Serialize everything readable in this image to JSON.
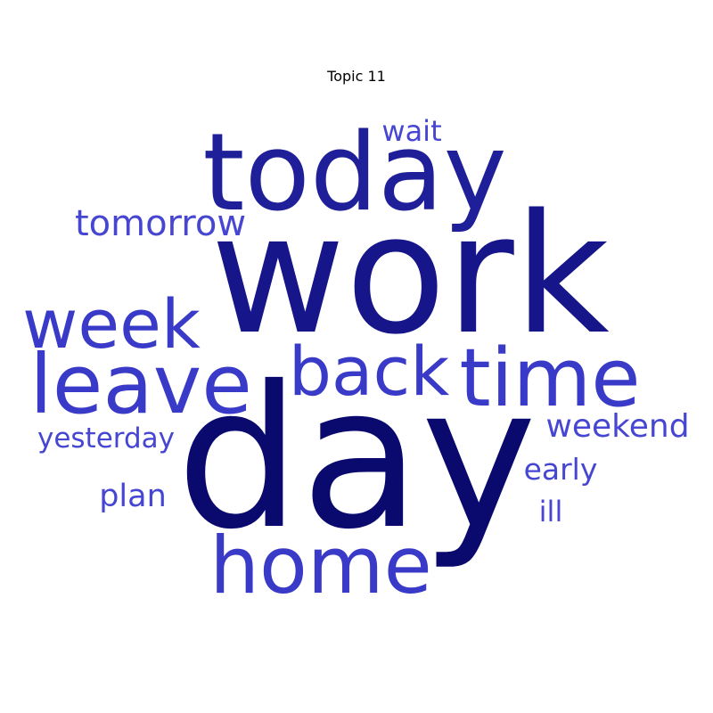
{
  "title": "Topic 11",
  "colors": {
    "background": "#ffffff",
    "darkest": "#0a0a6e",
    "dark": "#16168a",
    "medium": "#1f1f9a",
    "light": "#3a3ac8",
    "lighter": "#4646d2"
  },
  "words": [
    {
      "text": "work",
      "tone": "dark"
    },
    {
      "text": "day",
      "tone": "darkest"
    },
    {
      "text": "today",
      "tone": "medium"
    },
    {
      "text": "week",
      "tone": "light"
    },
    {
      "text": "leave",
      "tone": "light"
    },
    {
      "text": "back",
      "tone": "light"
    },
    {
      "text": "time",
      "tone": "light"
    },
    {
      "text": "home",
      "tone": "light"
    },
    {
      "text": "tomorrow",
      "tone": "lighter"
    },
    {
      "text": "wait",
      "tone": "lighter"
    },
    {
      "text": "weekend",
      "tone": "lighter"
    },
    {
      "text": "yesterday",
      "tone": "lighter"
    },
    {
      "text": "early",
      "tone": "lighter"
    },
    {
      "text": "plan",
      "tone": "lighter"
    },
    {
      "text": "ill",
      "tone": "lighter"
    }
  ]
}
